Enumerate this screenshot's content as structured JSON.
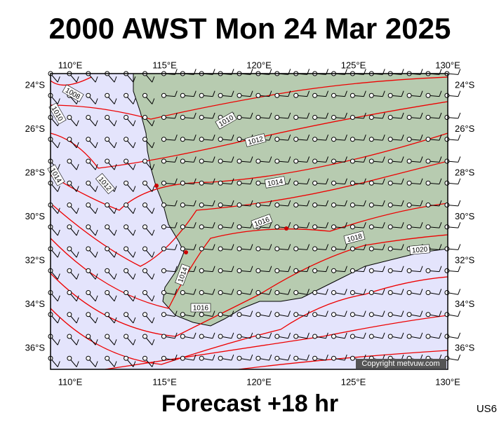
{
  "header": {
    "title": "2000 AWST Mon 24 Mar 2025"
  },
  "map": {
    "lon_labels": [
      "110°E",
      "115°E",
      "120°E",
      "125°E",
      "130°E"
    ],
    "lat_labels": [
      "24°S",
      "26°S",
      "28°S",
      "30°S",
      "32°S",
      "34°S",
      "36°S"
    ],
    "isobar_labels": [
      1008,
      1010,
      1012,
      1014,
      1016,
      1018,
      1020
    ],
    "copyright": "Copyright metvuw.com"
  },
  "footer": {
    "forecast": "Forecast +18 hr",
    "code": "US6"
  }
}
